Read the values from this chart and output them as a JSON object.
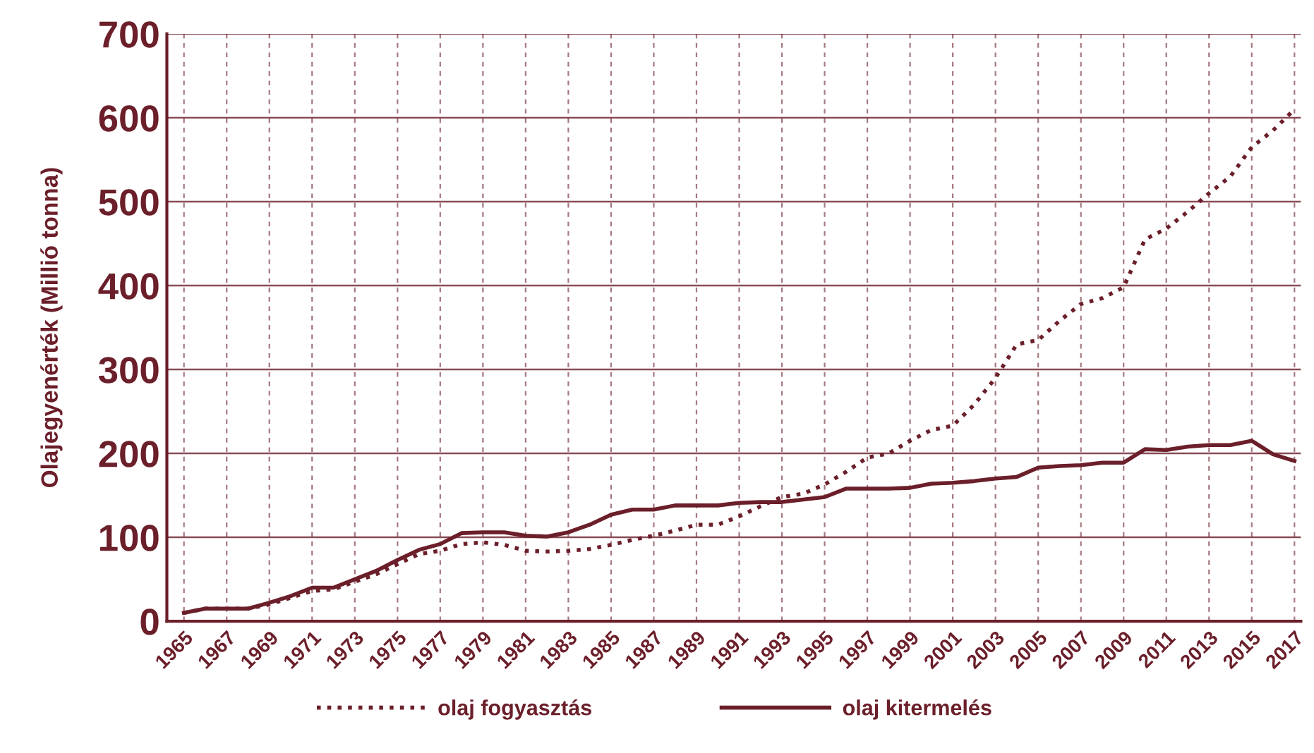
{
  "chart_data": {
    "type": "line",
    "ylabel": "Olajegyenérték (Millió tonna)",
    "x": [
      1965,
      1966,
      1967,
      1968,
      1969,
      1970,
      1971,
      1972,
      1973,
      1974,
      1975,
      1976,
      1977,
      1978,
      1979,
      1980,
      1981,
      1982,
      1983,
      1984,
      1985,
      1986,
      1987,
      1988,
      1989,
      1990,
      1991,
      1992,
      1993,
      1994,
      1995,
      1996,
      1997,
      1998,
      1999,
      2000,
      2001,
      2002,
      2003,
      2004,
      2005,
      2006,
      2007,
      2008,
      2009,
      2010,
      2011,
      2012,
      2013,
      2014,
      2015,
      2016,
      2017
    ],
    "series": [
      {
        "name": "olaj fogyasztás",
        "color": "#6b1f2a",
        "line_style": "dotted",
        "values": [
          10,
          15,
          15,
          15,
          20,
          28,
          36,
          38,
          47,
          56,
          68,
          80,
          84,
          92,
          94,
          91,
          84,
          83,
          84,
          86,
          91,
          97,
          102,
          108,
          115,
          115,
          125,
          137,
          148,
          152,
          163,
          178,
          195,
          200,
          215,
          228,
          233,
          258,
          290,
          330,
          335,
          358,
          378,
          385,
          398,
          455,
          468,
          488,
          510,
          530,
          565,
          585,
          610
        ]
      },
      {
        "name": "olaj kitermelés",
        "color": "#6b1f2a",
        "line_style": "solid",
        "values": [
          10,
          15,
          15,
          15,
          22,
          30,
          40,
          40,
          50,
          60,
          73,
          85,
          92,
          105,
          106,
          106,
          102,
          101,
          106,
          115,
          127,
          133,
          133,
          138,
          138,
          138,
          141,
          142,
          142,
          145,
          148,
          158,
          158,
          158,
          159,
          164,
          165,
          167,
          170,
          172,
          183,
          185,
          186,
          189,
          189,
          205,
          204,
          208,
          210,
          210,
          215,
          199,
          191
        ]
      }
    ],
    "xlim": [
      1964.2,
      2017.3
    ],
    "xticks": [
      1965,
      1967,
      1969,
      1971,
      1973,
      1975,
      1977,
      1979,
      1981,
      1983,
      1985,
      1987,
      1989,
      1991,
      1993,
      1995,
      1997,
      1999,
      2001,
      2003,
      2005,
      2007,
      2009,
      2011,
      2013,
      2015,
      2017
    ],
    "ylim": [
      0,
      700
    ],
    "yticks": [
      0,
      100,
      200,
      300,
      400,
      500,
      600,
      700
    ],
    "grid": true,
    "legend": "bottom",
    "marker": "none"
  }
}
